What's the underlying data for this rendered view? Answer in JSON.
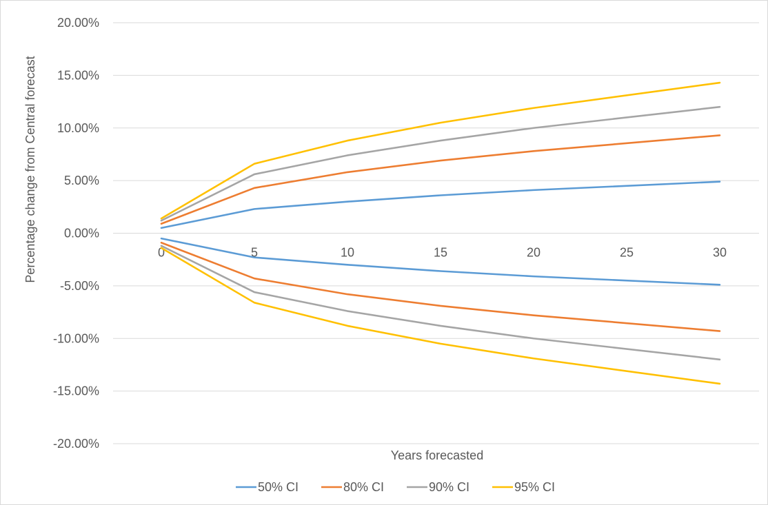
{
  "chart_data": {
    "type": "line",
    "title": "",
    "xlabel": "Years forecasted",
    "ylabel": "Percentage change from Central forecast",
    "x_categories": [
      "0",
      "5",
      "10",
      "15",
      "20",
      "25",
      "30"
    ],
    "x": [
      0,
      5,
      10,
      15,
      20,
      30
    ],
    "y_ticks": [
      "20.00%",
      "15.00%",
      "10.00%",
      "5.00%",
      "0.00%",
      "-5.00%",
      "-10.00%",
      "-15.00%",
      "-20.00%"
    ],
    "ylim": [
      -20,
      20
    ],
    "y_unit": "percent",
    "grid": "horizontal",
    "legend": "bottom",
    "series": [
      {
        "name": "50% CI",
        "color": "#5b9bd5",
        "upper": [
          0.5,
          2.3,
          3.0,
          3.6,
          4.1,
          4.9
        ],
        "lower": [
          -0.5,
          -2.3,
          -3.0,
          -3.6,
          -4.1,
          -4.9
        ]
      },
      {
        "name": "80% CI",
        "color": "#ed7d31",
        "upper": [
          0.9,
          4.3,
          5.8,
          6.9,
          7.8,
          9.3
        ],
        "lower": [
          -0.9,
          -4.3,
          -5.8,
          -6.9,
          -7.8,
          -9.3
        ]
      },
      {
        "name": "90% CI",
        "color": "#a5a5a5",
        "upper": [
          1.2,
          5.6,
          7.4,
          8.8,
          10.0,
          12.0
        ],
        "lower": [
          -1.2,
          -5.6,
          -7.4,
          -8.8,
          -10.0,
          -12.0
        ]
      },
      {
        "name": "95% CI",
        "color": "#ffc000",
        "upper": [
          1.4,
          6.6,
          8.8,
          10.5,
          11.9,
          14.3
        ],
        "lower": [
          -1.4,
          -6.6,
          -8.8,
          -10.5,
          -11.9,
          -14.3
        ]
      }
    ]
  }
}
